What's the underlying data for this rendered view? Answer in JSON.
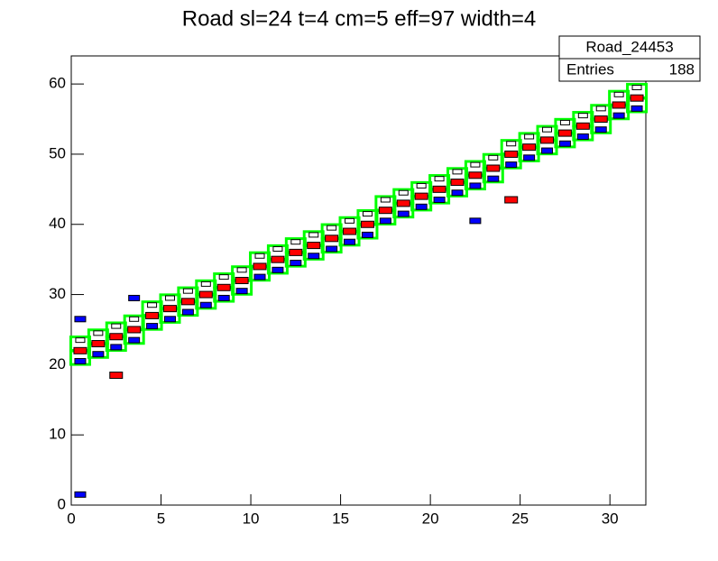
{
  "chart_data": {
    "type": "box2d",
    "title": "Road sl=24 t=4 cm=5 eff=97 width=4",
    "stats": {
      "name": "Road_24453",
      "entries_label": "Entries",
      "entries": 188
    },
    "xlim": [
      0,
      32
    ],
    "ylim": [
      0,
      64
    ],
    "xticks": [
      0,
      5,
      10,
      15,
      20,
      25,
      30
    ],
    "yticks": [
      0,
      10,
      20,
      30,
      40,
      50,
      60
    ],
    "series": [
      {
        "color": "#00ff00",
        "x": [
          0.5,
          0.5,
          1.5,
          1.5,
          2.5,
          2.5,
          3.5,
          3.5,
          4.5,
          4.5,
          5.5,
          5.5,
          6.5,
          6.5,
          7.5,
          7.5,
          8.5,
          8.5,
          9.5,
          9.5,
          10.5,
          10.5,
          11.5,
          11.5,
          12.5,
          12.5,
          13.5,
          13.5,
          14.5,
          14.5,
          15.5,
          15.5,
          16.5,
          16.5,
          17.5,
          17.5,
          18.5,
          18.5,
          19.5,
          19.5,
          20.5,
          20.5,
          21.5,
          21.5,
          22.5,
          22.5,
          23.5,
          23.5,
          24.5,
          24.5,
          25.5,
          25.5,
          26.5,
          26.5,
          27.5,
          27.5,
          28.5,
          28.5,
          29.5,
          29.5,
          30.5,
          30.5,
          31.5,
          31.5
        ],
        "y": [
          21,
          23,
          22,
          24,
          23,
          25,
          24,
          26,
          26,
          28,
          27,
          29,
          28,
          30,
          29,
          31,
          30,
          32,
          31,
          33,
          33,
          35,
          34,
          36,
          35,
          37,
          36,
          38,
          37,
          39,
          38,
          40,
          39,
          41,
          41,
          43,
          42,
          44,
          43,
          45,
          44,
          46,
          45,
          47,
          46,
          48,
          47,
          49,
          49,
          51,
          50,
          52,
          51,
          53,
          52,
          54,
          53,
          55,
          54,
          56,
          56,
          58,
          57,
          59
        ]
      },
      {
        "color": "#ff0000",
        "x": [
          0.5,
          1.5,
          2.5,
          3.5,
          4.5,
          5.5,
          6.5,
          7.5,
          8.5,
          9.5,
          10.5,
          11.5,
          12.5,
          13.5,
          14.5,
          15.5,
          16.5,
          17.5,
          18.5,
          19.5,
          20.5,
          21.5,
          22.5,
          23.5,
          24.5,
          25.5,
          26.5,
          27.5,
          28.5,
          29.5,
          30.5,
          31.5,
          2.5,
          24.5
        ],
        "y": [
          22,
          23,
          24,
          25,
          27,
          28,
          29,
          30,
          31,
          32,
          34,
          35,
          36,
          37,
          38,
          39,
          40,
          42,
          43,
          44,
          45,
          46,
          47,
          48,
          50,
          51,
          52,
          53,
          54,
          55,
          57,
          58,
          18.5,
          43.5
        ]
      },
      {
        "color": "#0000ff",
        "x": [
          0.5,
          1.5,
          2.5,
          3.5,
          4.5,
          5.5,
          6.5,
          7.5,
          8.5,
          9.5,
          10.5,
          11.5,
          12.5,
          13.5,
          14.5,
          15.5,
          16.5,
          17.5,
          18.5,
          19.5,
          20.5,
          21.5,
          22.5,
          23.5,
          24.5,
          25.5,
          26.5,
          27.5,
          28.5,
          29.5,
          30.5,
          31.5,
          0.5,
          0.5,
          3.5,
          22.5
        ],
        "y": [
          20.5,
          21.5,
          22.5,
          23.5,
          25.5,
          26.5,
          27.5,
          28.5,
          29.5,
          30.5,
          32.5,
          33.5,
          34.5,
          35.5,
          36.5,
          37.5,
          38.5,
          40.5,
          41.5,
          42.5,
          43.5,
          44.5,
          45.5,
          46.5,
          48.5,
          49.5,
          50.5,
          51.5,
          52.5,
          53.5,
          55.5,
          56.5,
          1.5,
          26.5,
          29.5,
          40.5
        ]
      },
      {
        "color": "#000000",
        "x": [
          0.5,
          1.5,
          2.5,
          3.5,
          4.5,
          5.5,
          6.5,
          7.5,
          8.5,
          9.5,
          10.5,
          11.5,
          12.5,
          13.5,
          14.5,
          15.5,
          16.5,
          17.5,
          18.5,
          19.5,
          20.5,
          21.5,
          22.5,
          23.5,
          24.5,
          25.5,
          26.5,
          27.5,
          28.5,
          29.5,
          30.5,
          31.5
        ],
        "y": [
          23.5,
          24.5,
          25.5,
          26.5,
          28.5,
          29.5,
          30.5,
          31.5,
          32.5,
          33.5,
          35.5,
          36.5,
          37.5,
          38.5,
          39.5,
          40.5,
          41.5,
          43.5,
          44.5,
          45.5,
          46.5,
          47.5,
          48.5,
          49.5,
          51.5,
          52.5,
          53.5,
          54.5,
          55.5,
          56.5,
          58.5,
          59.5
        ]
      }
    ]
  }
}
